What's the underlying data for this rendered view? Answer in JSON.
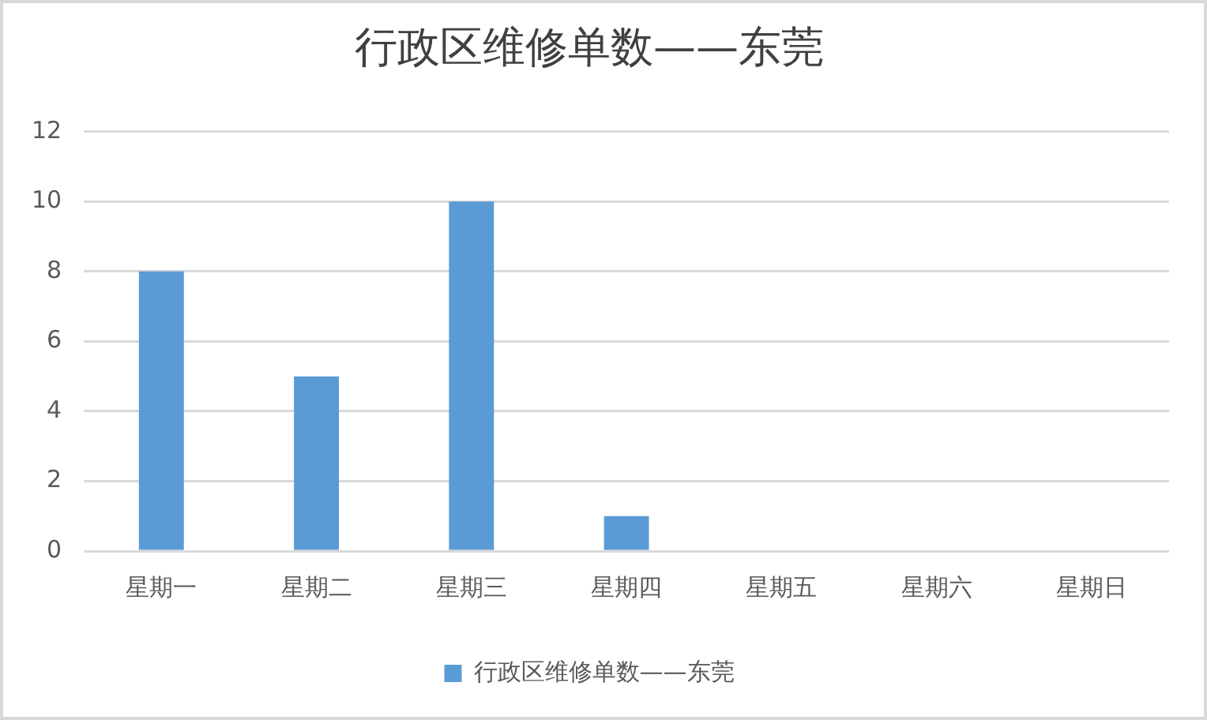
{
  "chart_data": {
    "type": "bar",
    "title": "行政区维修单数——东莞",
    "categories": [
      "星期一",
      "星期二",
      "星期三",
      "星期四",
      "星期五",
      "星期六",
      "星期日"
    ],
    "series": [
      {
        "name": "行政区维修单数——东莞",
        "color": "#5b9bd5",
        "values": [
          8,
          5,
          10,
          1,
          0,
          0,
          0
        ]
      }
    ],
    "ylim": [
      0,
      12
    ],
    "yticks": [
      0,
      2,
      4,
      6,
      8,
      10,
      12
    ],
    "grid": "y",
    "legend": "bottom"
  }
}
